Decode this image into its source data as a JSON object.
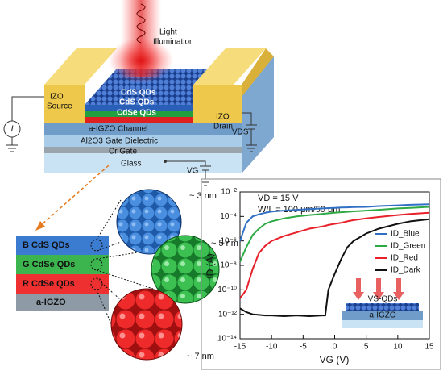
{
  "diagram": {
    "light": "Light",
    "illumination": "Illumination",
    "source_1": "IZO",
    "source_2": "Source",
    "drain_1": "IZO",
    "drain_2": "Drain",
    "qd_top": "CdS QDs",
    "qd_mid": "CdS QDs",
    "qd_bot": "CdSe QDs",
    "channel": "a-IGZO Channel",
    "dielectric": "Al2O3 Gate Dielectric",
    "gate": "Cr Gate",
    "glass": "Glass",
    "current": "I",
    "vds": "VDS",
    "vg": "VG",
    "stack_b": "B CdS QDs",
    "stack_g": "G CdSe QDs",
    "stack_r": "R CdSe QDs",
    "stack_igzo": "a-IGZO",
    "size_small": "~ 3 nm",
    "size_mid": "~ 5 nm",
    "size_large": "~ 7 nm"
  },
  "chart_data": {
    "type": "line",
    "log_y": true,
    "x_label": "VG (V)",
    "y_label": "ID (A)",
    "annotations": [
      "VD = 15 V",
      "W/L = 100 μm/50 μm"
    ],
    "inset": {
      "label_top": "VS-QDs",
      "label_bottom": "a-IGZO"
    },
    "x": [
      -15,
      -14,
      -13,
      -12,
      -11,
      -10,
      -8,
      -6,
      -4,
      -2,
      -1.5,
      -1,
      0,
      1,
      2,
      3,
      5,
      7,
      10,
      12,
      15
    ],
    "series": [
      {
        "name": "ID_Blue",
        "color": "#2f6fc4",
        "values": [
          1e-06,
          3e-05,
          0.0001,
          0.00015,
          0.0002,
          0.00025,
          0.0003,
          0.00035,
          0.0004,
          0.00045,
          0.00046,
          0.00048,
          0.0005,
          0.00053,
          0.00055,
          0.00058,
          0.0006,
          0.0007,
          0.0008,
          0.0009,
          0.001
        ]
      },
      {
        "name": "ID_Green",
        "color": "#2eaa44",
        "values": [
          2e-08,
          3e-07,
          3e-06,
          1e-05,
          2.5e-05,
          4e-05,
          7e-05,
          0.0001,
          0.00013,
          0.00016,
          0.00017,
          0.00018,
          0.0002,
          0.00022,
          0.00024,
          0.00026,
          0.0003,
          0.00035,
          0.00045,
          0.0005,
          0.0006
        ]
      },
      {
        "name": "ID_Red",
        "color": "#e8202a",
        "values": [
          2e-11,
          1e-10,
          5e-09,
          1e-07,
          4e-07,
          1e-06,
          2.5e-06,
          5e-06,
          1e-05,
          1.5e-05,
          1.7e-05,
          2e-05,
          2.5e-05,
          3e-05,
          4e-05,
          5e-05,
          7e-05,
          9e-05,
          0.00013,
          0.00016,
          0.0002
        ]
      },
      {
        "name": "ID_Dark",
        "color": "#111111",
        "values": [
          3e-12,
          1.5e-12,
          1e-12,
          9e-13,
          8e-13,
          8e-13,
          7e-13,
          8e-13,
          7e-13,
          8e-13,
          8e-13,
          1e-10,
          2e-09,
          3e-08,
          3e-07,
          1e-06,
          4e-06,
          1e-05,
          2.5e-05,
          4e-05,
          6e-05
        ]
      }
    ],
    "xlim": [
      -15,
      15
    ],
    "xticks": [
      -15,
      -10,
      -5,
      0,
      5,
      10,
      15
    ],
    "ylim": [
      1e-14,
      0.01
    ],
    "yticks": [
      {
        "value": 1e-14,
        "label": "10⁻¹⁴"
      },
      {
        "value": 1e-12,
        "label": "10⁻¹²"
      },
      {
        "value": 1e-10,
        "label": "10⁻¹⁰"
      },
      {
        "value": 1e-08,
        "label": "10⁻⁸"
      },
      {
        "value": 1e-06,
        "label": "10⁻⁶"
      },
      {
        "value": 0.0001,
        "label": "10⁻⁴"
      },
      {
        "value": 0.01,
        "label": "10⁻²"
      }
    ],
    "legend": "right"
  }
}
